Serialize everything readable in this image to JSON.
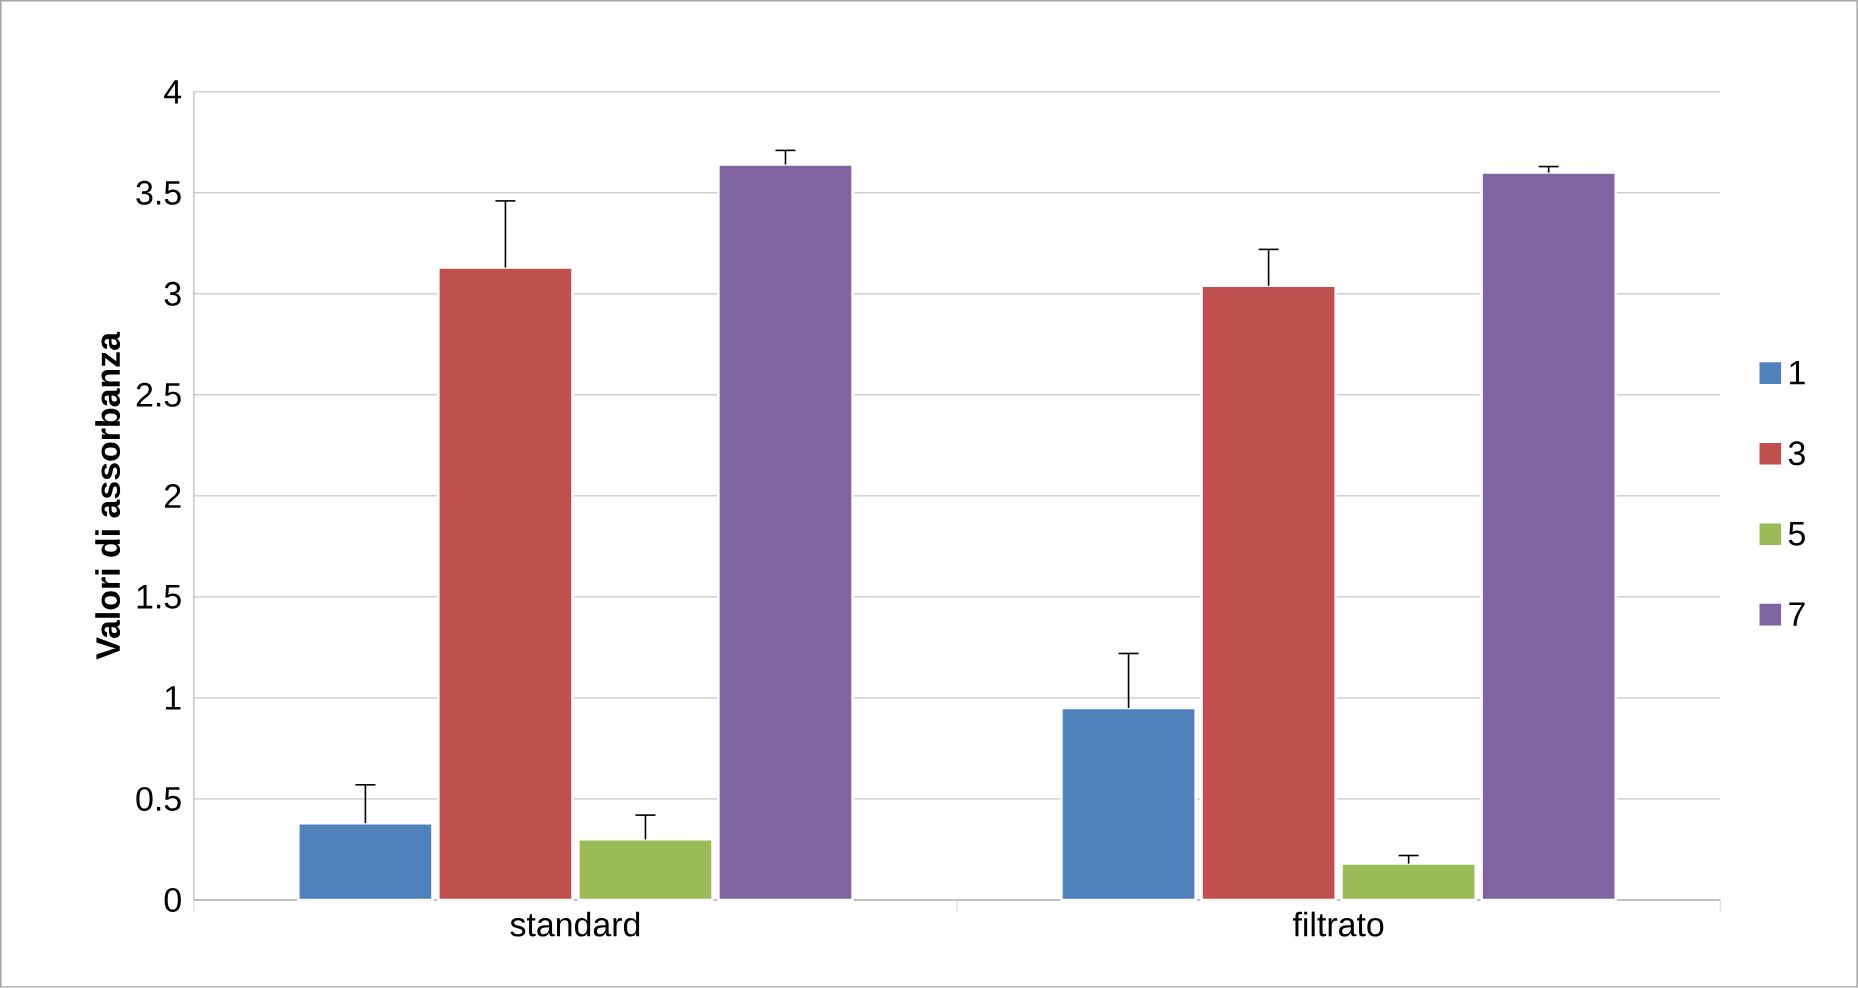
{
  "chart_data": {
    "type": "bar",
    "ylabel": "Valori di assorbanza",
    "categories": [
      "standard",
      "filtrato"
    ],
    "series": [
      {
        "name": "1",
        "color": "#4f81bd",
        "values": [
          0.38,
          0.95
        ],
        "errors": [
          [
            0.38,
            0.57
          ],
          [
            0.95,
            1.22
          ]
        ]
      },
      {
        "name": "3",
        "color": "#c0504d",
        "values": [
          3.13,
          3.04
        ],
        "errors": [
          [
            3.13,
            3.46
          ],
          [
            3.04,
            3.22
          ]
        ]
      },
      {
        "name": "5",
        "color": "#9bbb59",
        "values": [
          0.3,
          0.18
        ],
        "errors": [
          [
            0.3,
            0.42
          ],
          [
            0.18,
            0.22
          ]
        ]
      },
      {
        "name": "7",
        "color": "#8064a2",
        "values": [
          3.64,
          3.6
        ],
        "errors": [
          [
            3.64,
            3.71
          ],
          [
            3.6,
            3.63
          ]
        ]
      }
    ],
    "ylim": [
      0,
      4
    ],
    "yticks": [
      0,
      0.5,
      1,
      1.5,
      2,
      2.5,
      3,
      3.5,
      4
    ],
    "grid": "y",
    "legend": "right"
  }
}
